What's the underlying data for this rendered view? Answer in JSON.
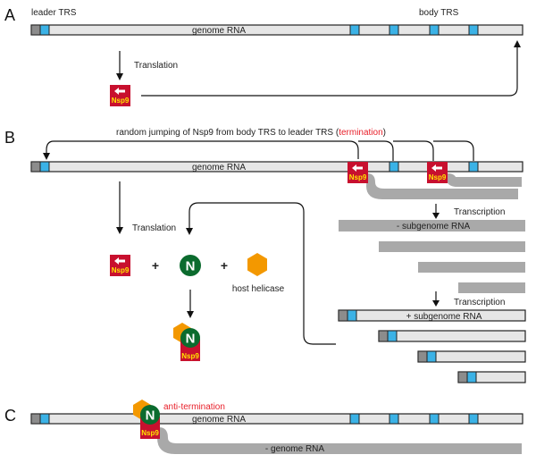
{
  "panels": {
    "a": "A",
    "b": "B",
    "c": "C"
  },
  "panel_a": {
    "leader_trs": "leader TRS",
    "body_trs": "body TRS",
    "genome_rna": "genome RNA",
    "translation": "Translation",
    "nsp9": "Nsp9"
  },
  "panel_b": {
    "jump_text": "random jumping of Nsp9 from body TRS to leader TRS (",
    "jump_red": "termination",
    "jump_close": ")",
    "genome_rna": "genome RNA",
    "nsp9": "Nsp9",
    "translation": "Translation",
    "transcription": "Transcription",
    "minus_subgenome": "- subgenome RNA",
    "plus_subgenome": "+ subgenome RNA",
    "plus_sign": "+",
    "n_protein": "N",
    "host_helicase": "host helicase"
  },
  "panel_c": {
    "anti_termination": "anti-termination",
    "genome_rna": "genome RNA",
    "minus_genome": "- genome RNA",
    "n_protein": "N",
    "nsp9": "Nsp9"
  },
  "colors": {
    "trs_blue": "#3bb2e6",
    "nsp9_red": "#c8102e",
    "nsp9_text": "#ffe500",
    "n_green": "#0b6b2e",
    "helicase_orange": "#f39800",
    "strand_gray": "#a9a9a9",
    "termination_red": "#e8202a"
  }
}
